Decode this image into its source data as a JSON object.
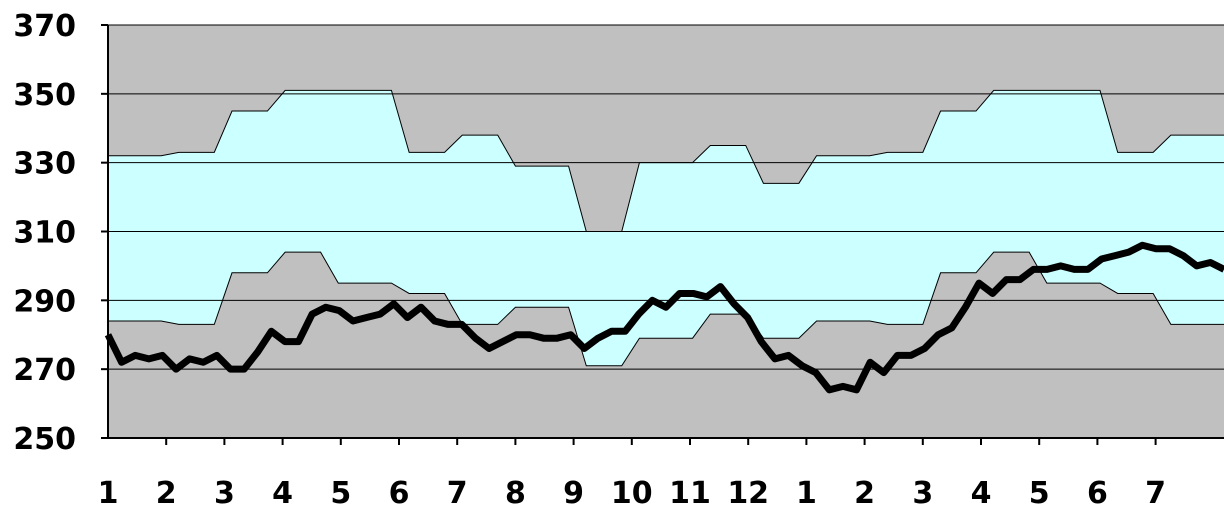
{
  "chart_data": {
    "type": "area",
    "title": "",
    "xlabel": "",
    "ylabel": "",
    "ylim": [
      250,
      370
    ],
    "yticks": [
      250,
      270,
      290,
      310,
      330,
      350,
      370
    ],
    "x_tick_labels": [
      "1",
      "2",
      "3",
      "4",
      "5",
      "6",
      "7",
      "8",
      "9",
      "10",
      "11",
      "12",
      "1",
      "2",
      "3",
      "4",
      "5",
      "6",
      "7"
    ],
    "grid": true,
    "colors": {
      "outer_band": "#c0c0c0",
      "inner_band": "#ccffff",
      "line": "#000000"
    },
    "series": [
      {
        "role": "upper_bound",
        "values": [
          332,
          332,
          332,
          332,
          333,
          333,
          333,
          345,
          345,
          345,
          351,
          351,
          351,
          351,
          351,
          351,
          351,
          333,
          333,
          333,
          338,
          338,
          338,
          329,
          329,
          329,
          329,
          310,
          310,
          310,
          330,
          330,
          330,
          330,
          335,
          335,
          335,
          324,
          324,
          324,
          332,
          332,
          332,
          332,
          333,
          333,
          333,
          345,
          345,
          345,
          351,
          351,
          351,
          351,
          351,
          351,
          351,
          333,
          333,
          333,
          338,
          338,
          338,
          338
        ]
      },
      {
        "role": "lower_bound",
        "values": [
          284,
          284,
          284,
          284,
          283,
          283,
          283,
          298,
          298,
          298,
          304,
          304,
          304,
          295,
          295,
          295,
          295,
          292,
          292,
          292,
          283,
          283,
          283,
          288,
          288,
          288,
          288,
          271,
          271,
          271,
          279,
          279,
          279,
          279,
          286,
          286,
          286,
          279,
          279,
          279,
          284,
          284,
          284,
          284,
          283,
          283,
          283,
          298,
          298,
          298,
          304,
          304,
          304,
          295,
          295,
          295,
          295,
          292,
          292,
          292,
          283,
          283,
          283,
          283
        ]
      },
      {
        "role": "actual",
        "values": [
          280,
          272,
          274,
          273,
          274,
          270,
          273,
          272,
          274,
          270,
          270,
          275,
          281,
          278,
          278,
          286,
          288,
          287,
          284,
          285,
          286,
          289,
          285,
          288,
          284,
          283,
          283,
          279,
          276,
          278,
          280,
          280,
          279,
          279,
          280,
          276,
          279,
          281,
          281,
          286,
          290,
          288,
          292,
          292,
          291,
          294,
          289,
          285,
          278,
          273,
          274,
          271,
          269,
          264,
          265,
          264,
          272,
          269,
          274,
          274,
          276,
          280,
          282,
          288,
          295,
          292,
          296,
          296,
          299,
          299,
          300,
          299,
          299,
          302,
          303,
          304,
          306,
          305,
          305,
          303,
          300,
          301,
          299
        ]
      }
    ]
  }
}
